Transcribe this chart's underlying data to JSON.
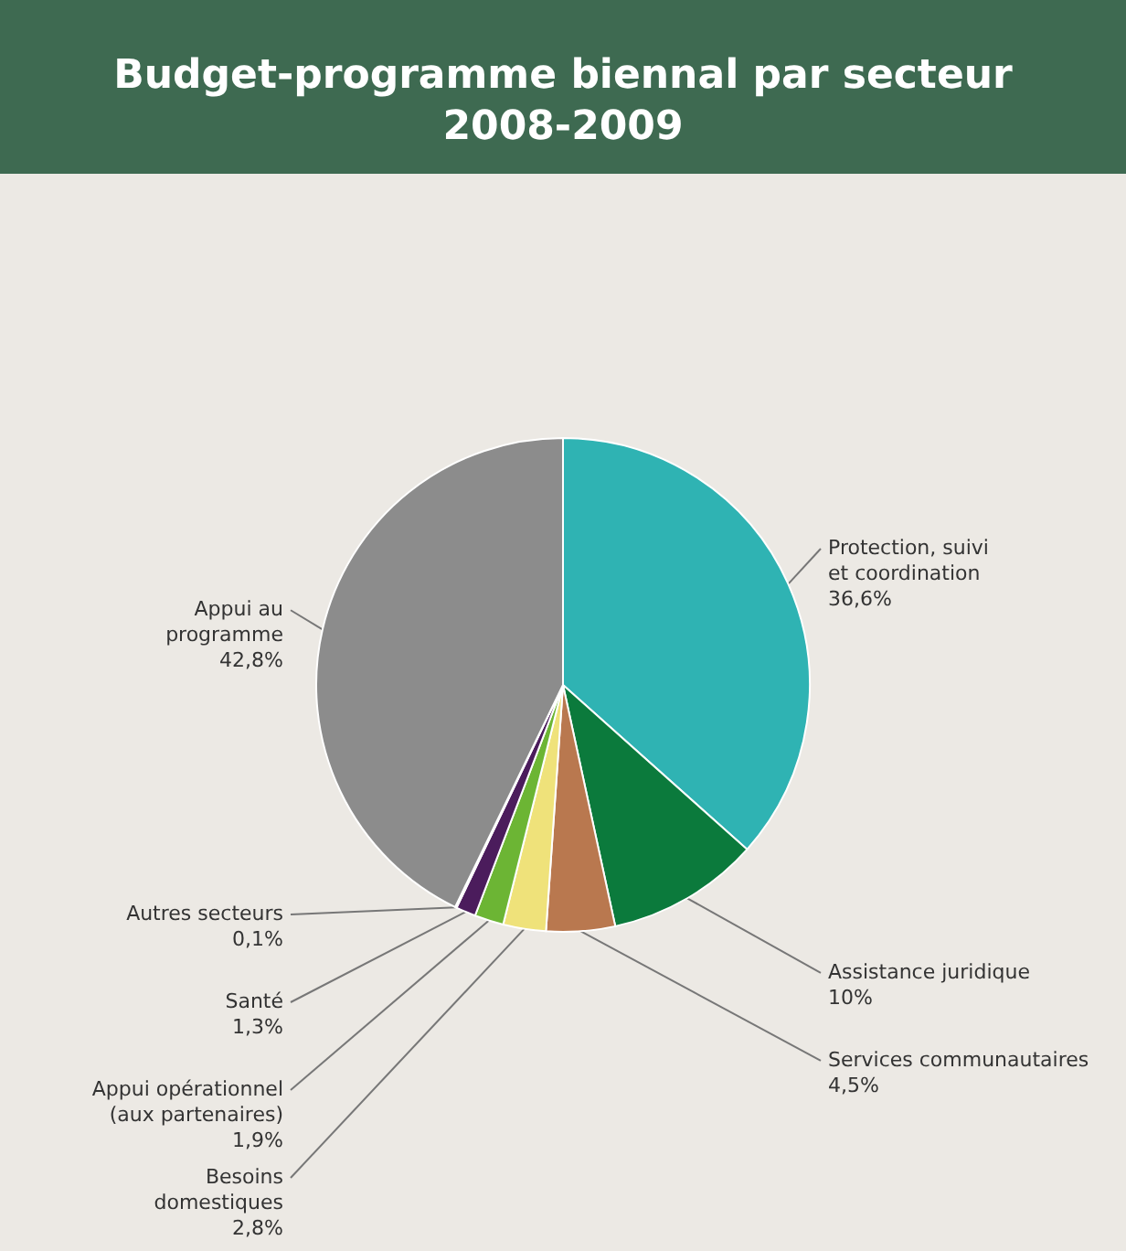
{
  "chart_data": {
    "type": "pie",
    "title": "Budget-programme biennal par secteur\n2008-2009",
    "categories": [
      "Protection, suivi\net coordination",
      "Assistance juridique",
      "Services communautaires",
      "Besoins\ndomestiques",
      "Appui opérationnel\n(aux partenaires)",
      "Santé",
      "Autres secteurs",
      "Appui au\nprogramme"
    ],
    "values": [
      36.6,
      10,
      4.5,
      2.8,
      1.9,
      1.3,
      0.1,
      42.8
    ],
    "value_labels": [
      "36,6%",
      "10%",
      "4,5%",
      "2,8%",
      "1,9%",
      "1,3%",
      "0,1%",
      "42,8%"
    ],
    "colors": [
      "#2fb3b3",
      "#0b7a3c",
      "#b9784f",
      "#efe27a",
      "#6cb534",
      "#4b1c5c",
      "#f6f2f2",
      "#8c8c8c"
    ],
    "legend": false
  }
}
